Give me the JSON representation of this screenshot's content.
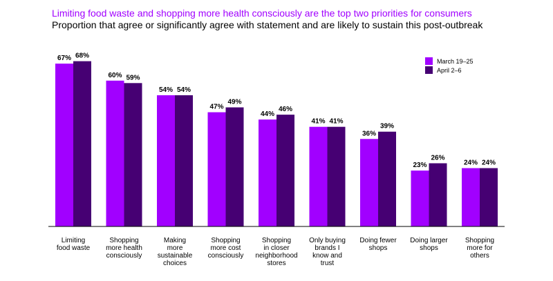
{
  "title": "Limiting food waste and shopping more health consciously are the top two priorities for consumers",
  "subtitle": "Proportion that agree or significantly agree with statement and are likely to sustain this post-outbreak",
  "colors": {
    "series1": "#a100ff",
    "series2": "#460073",
    "axis": "#000000"
  },
  "chart_data": {
    "type": "bar",
    "categories": [
      [
        "Limiting",
        "food waste"
      ],
      [
        "Shopping",
        "more health",
        "consciously"
      ],
      [
        "Making",
        "more",
        "sustainable",
        "choices"
      ],
      [
        "Shopping",
        "more cost",
        "consciously"
      ],
      [
        "Shopping",
        "in closer",
        "neighborhood",
        "stores"
      ],
      [
        "Only buying",
        "brands I",
        "know and",
        "trust"
      ],
      [
        "Doing fewer",
        "shops"
      ],
      [
        "Doing larger",
        "shops"
      ],
      [
        "Shopping",
        "more for",
        "others"
      ]
    ],
    "series": [
      {
        "name": "March 19–25",
        "values": [
          67,
          60,
          54,
          47,
          44,
          41,
          36,
          23,
          24
        ]
      },
      {
        "name": "April 2–6",
        "values": [
          68,
          59,
          54,
          49,
          46,
          41,
          39,
          26,
          24
        ]
      }
    ],
    "value_suffix": "%",
    "ylim": [
      0,
      100
    ],
    "grid": false,
    "legend": "top-right"
  }
}
